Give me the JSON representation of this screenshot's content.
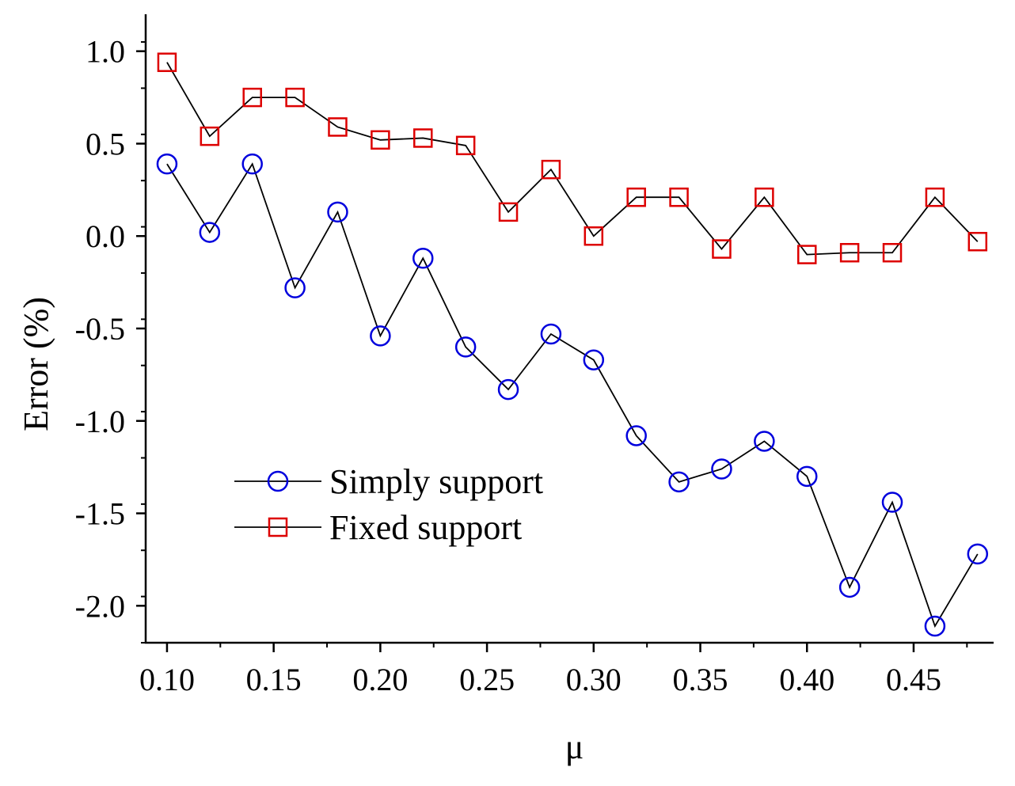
{
  "chart_data": {
    "type": "line",
    "title": "",
    "xlabel": "μ",
    "ylabel": "Error (%)",
    "xlim": [
      0.09,
      0.4875
    ],
    "ylim": [
      -2.2,
      1.2
    ],
    "x": [
      0.1,
      0.12,
      0.14,
      0.16,
      0.18,
      0.2,
      0.22,
      0.24,
      0.26,
      0.28,
      0.3,
      0.32,
      0.34,
      0.36,
      0.38,
      0.4,
      0.42,
      0.44,
      0.46,
      0.48
    ],
    "xticks": [
      0.1,
      0.15,
      0.2,
      0.25,
      0.3,
      0.35,
      0.4,
      0.45
    ],
    "xtick_labels": [
      "0.10",
      "0.15",
      "0.20",
      "0.25",
      "0.30",
      "0.35",
      "0.40",
      "0.45"
    ],
    "yticks": [
      1.0,
      0.5,
      0.0,
      -0.5,
      -1.0,
      -1.5,
      -2.0
    ],
    "ytick_labels": [
      "1.0",
      "0.5",
      "0.0",
      "-0.5",
      "-1.0",
      "-1.5",
      "-2.0"
    ],
    "grid": false,
    "legend_position": "lower-left",
    "series": [
      {
        "name": "Simply support",
        "marker": "circle",
        "marker_color": "#0000dd",
        "line_color": "#000000",
        "values": [
          0.39,
          0.02,
          0.39,
          -0.28,
          0.13,
          -0.54,
          -0.12,
          -0.6,
          -0.83,
          -0.53,
          -0.67,
          -1.08,
          -1.33,
          -1.26,
          -1.11,
          -1.3,
          -1.9,
          -1.44,
          -2.11,
          -1.72
        ]
      },
      {
        "name": "Fixed support",
        "marker": "square",
        "marker_color": "#dd0000",
        "line_color": "#000000",
        "values": [
          0.94,
          0.54,
          0.75,
          0.75,
          0.59,
          0.52,
          0.53,
          0.49,
          0.13,
          0.36,
          0.0,
          0.21,
          0.21,
          -0.07,
          0.21,
          -0.1,
          -0.09,
          -0.09,
          0.21,
          -0.03
        ]
      }
    ]
  }
}
